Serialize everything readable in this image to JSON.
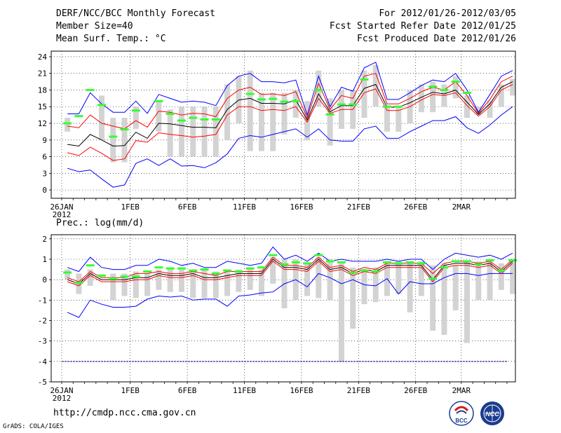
{
  "header": {
    "title": "DERF/NCC/BCC Monthly Forecast",
    "member_size": "Member Size=40",
    "variable1": "Mean Surf. Temp.: °C",
    "period": "For 2012/01/26-2012/03/05",
    "start_ref": "Fcst Started Refer Date 2012/01/25",
    "produced": "Fcst Produced Date 2012/01/26"
  },
  "footer": {
    "url": "http://cmdp.ncc.cma.gov.cn",
    "credit": "GrADS: COLA/IGES",
    "logo_left": "BCC",
    "logo_right": "NCC"
  },
  "colors": {
    "max": "#0000ff",
    "min": "#0000ff",
    "spread": "#ff0000",
    "mean": "#000000",
    "obs": "#33ff33",
    "box": "#d3d3d3",
    "threshold": "#00008b"
  },
  "chart_data": [
    {
      "type": "line",
      "title": "Mean Surf. Temp.: °C",
      "x_tick_labels": [
        "26JAN\n2012",
        "1FEB",
        "6FEB",
        "11FEB",
        "16FEB",
        "21FEB",
        "26FEB",
        "2MAR"
      ],
      "x_tick_days": [
        0,
        6,
        11,
        16,
        21,
        26,
        31,
        35
      ],
      "ylim": [
        -1.5,
        25
      ],
      "yticks": [
        0,
        3,
        6,
        9,
        12,
        15,
        18,
        21,
        24
      ],
      "n_days": 39,
      "series": [
        {
          "name": "max",
          "values": [
            13.7,
            13.7,
            17.5,
            15.5,
            14.0,
            14.0,
            16.0,
            13.8,
            17.2,
            16.5,
            15.8,
            16.0,
            15.8,
            15.2,
            18.8,
            20.5,
            21.0,
            19.5,
            19.5,
            19.3,
            19.8,
            13.5,
            20.5,
            15.0,
            18.5,
            17.8,
            22.0,
            23.0,
            16.3,
            16.3,
            17.5,
            18.8,
            19.8,
            19.5,
            21.0,
            18.0,
            14.0,
            17.2,
            20.5,
            21.5
          ]
        },
        {
          "name": "upper",
          "values": [
            11.5,
            11.2,
            13.5,
            12.0,
            11.5,
            11.0,
            12.5,
            11.3,
            14.2,
            14.0,
            13.5,
            13.8,
            13.7,
            13.2,
            16.5,
            18.0,
            18.5,
            17.2,
            17.3,
            17.0,
            17.7,
            13.0,
            19.2,
            14.5,
            17.0,
            16.5,
            20.5,
            21.0,
            15.5,
            15.5,
            16.5,
            17.7,
            18.5,
            18.0,
            19.5,
            17.0,
            13.8,
            16.3,
            19.5,
            20.5
          ]
        },
        {
          "name": "mean",
          "values": [
            8.2,
            7.9,
            10.0,
            9.0,
            7.9,
            8.0,
            10.4,
            9.3,
            12.0,
            11.9,
            11.6,
            11.3,
            11.3,
            11.2,
            14.5,
            16.2,
            16.5,
            15.6,
            15.6,
            15.5,
            16.2,
            12.6,
            17.3,
            14.1,
            15.2,
            15.2,
            18.3,
            19.0,
            14.9,
            14.9,
            15.7,
            16.7,
            17.6,
            17.3,
            18.0,
            15.8,
            13.6,
            15.5,
            18.5,
            19.5
          ]
        },
        {
          "name": "lower",
          "values": [
            6.7,
            6.2,
            7.7,
            6.6,
            5.3,
            5.6,
            8.9,
            8.6,
            10.3,
            10.0,
            9.8,
            9.5,
            9.7,
            10.0,
            13.5,
            15.0,
            15.0,
            14.3,
            14.5,
            14.3,
            15.0,
            12.2,
            16.5,
            13.8,
            14.5,
            14.5,
            17.5,
            18.2,
            14.3,
            14.3,
            15.0,
            16.2,
            17.2,
            17.0,
            17.5,
            15.2,
            13.3,
            15.0,
            18.0,
            19.0
          ]
        },
        {
          "name": "min",
          "values": [
            3.9,
            3.3,
            3.6,
            2.0,
            0.5,
            0.9,
            4.8,
            5.6,
            4.4,
            5.6,
            4.3,
            4.4,
            4.0,
            4.9,
            6.5,
            9.3,
            9.8,
            9.5,
            10.0,
            10.5,
            11.0,
            9.5,
            11.0,
            9.0,
            8.8,
            8.8,
            11.0,
            11.5,
            9.3,
            9.3,
            10.5,
            11.5,
            12.5,
            12.5,
            13.2,
            11.2,
            10.2,
            11.7,
            13.5,
            15.0
          ]
        },
        {
          "name": "obs_range_low",
          "values": [
            10.5,
            null,
            null,
            9.0,
            5.0,
            5.0,
            11.0,
            null,
            10.5,
            6.0,
            6.0,
            6.0,
            6.0,
            6.0,
            9.0,
            12.0,
            7.0,
            7.0,
            7.0,
            10.0,
            13.0,
            9.0,
            15.0,
            8.0,
            11.0,
            11.0,
            13.0,
            15.0,
            10.5,
            10.5,
            12.0,
            14.0,
            14.0,
            15.0,
            16.5,
            13.0,
            13.5,
            13.0,
            15.0,
            17.0
          ]
        },
        {
          "name": "obs_range_high",
          "values": [
            13.0,
            null,
            null,
            17.0,
            13.0,
            13.0,
            15.0,
            null,
            16.0,
            14.5,
            15.0,
            15.0,
            15.0,
            15.0,
            19.0,
            20.5,
            21.5,
            17.5,
            17.5,
            17.5,
            18.0,
            16.0,
            21.5,
            16.5,
            18.0,
            18.0,
            21.5,
            22.5,
            15.0,
            15.0,
            18.0,
            19.0,
            19.5,
            19.0,
            20.5,
            17.0,
            15.0,
            16.0,
            19.0,
            20.0
          ]
        },
        {
          "name": "obs",
          "values": [
            12.0,
            13.3,
            18.0,
            15.3,
            9.6,
            10.9,
            14.3,
            null,
            16.0,
            13.7,
            12.5,
            13.0,
            12.7,
            12.7,
            null,
            null,
            17.3,
            16.3,
            16.4,
            15.9,
            16.0,
            null,
            18.0,
            13.6,
            15.4,
            15.4,
            19.9,
            null,
            15.0,
            15.0,
            null,
            null,
            18.6,
            18.0,
            19.5,
            17.5,
            null,
            null,
            null,
            null
          ]
        }
      ]
    },
    {
      "type": "line",
      "title": "Prec.: log(mm/d)",
      "x_tick_labels": [
        "26JAN\n2012",
        "1FEB",
        "6FEB",
        "11FEB",
        "16FEB",
        "21FEB",
        "26FEB",
        "2MAR"
      ],
      "x_tick_days": [
        0,
        6,
        11,
        16,
        21,
        26,
        31,
        35
      ],
      "ylim": [
        -5,
        2.2
      ],
      "yticks": [
        -5,
        -4,
        -3,
        -2,
        -1,
        0,
        1,
        2
      ],
      "n_days": 39,
      "threshold": -4,
      "series": [
        {
          "name": "max",
          "values": [
            0.6,
            0.4,
            1.1,
            0.6,
            0.5,
            0.5,
            0.7,
            0.7,
            1.0,
            0.9,
            0.7,
            0.8,
            0.6,
            0.6,
            0.9,
            0.8,
            0.7,
            0.8,
            1.6,
            1.0,
            1.2,
            0.9,
            1.3,
            0.9,
            1.0,
            0.9,
            0.9,
            0.9,
            1.0,
            0.9,
            1.0,
            1.0,
            0.5,
            1.0,
            1.3,
            1.2,
            1.1,
            1.2,
            1.0,
            1.3
          ]
        },
        {
          "name": "upper",
          "values": [
            0.1,
            -0.1,
            0.4,
            0.1,
            0.1,
            0.1,
            0.3,
            0.3,
            0.4,
            0.3,
            0.3,
            0.4,
            0.3,
            0.2,
            0.4,
            0.4,
            0.4,
            0.4,
            1.1,
            0.7,
            0.7,
            0.6,
            1.1,
            0.6,
            0.7,
            0.4,
            0.6,
            0.5,
            0.8,
            0.8,
            0.8,
            0.8,
            0.3,
            0.8,
            0.9,
            0.9,
            0.8,
            0.9,
            0.5,
            1.0
          ]
        },
        {
          "name": "mean",
          "values": [
            0.0,
            -0.2,
            0.3,
            0.0,
            0.0,
            0.0,
            0.1,
            0.1,
            0.3,
            0.2,
            0.2,
            0.3,
            0.1,
            0.1,
            0.2,
            0.3,
            0.3,
            0.3,
            1.0,
            0.6,
            0.6,
            0.5,
            1.0,
            0.5,
            0.6,
            0.3,
            0.5,
            0.4,
            0.7,
            0.7,
            0.7,
            0.7,
            0.0,
            0.7,
            0.8,
            0.8,
            0.7,
            0.8,
            0.4,
            0.9
          ]
        },
        {
          "name": "lower",
          "values": [
            -0.1,
            -0.3,
            0.2,
            -0.1,
            -0.1,
            -0.1,
            0.0,
            0.0,
            0.2,
            0.1,
            0.1,
            0.2,
            0.0,
            0.0,
            0.1,
            0.2,
            0.2,
            0.2,
            0.9,
            0.5,
            0.5,
            0.4,
            0.9,
            0.4,
            0.5,
            0.2,
            0.4,
            0.3,
            0.6,
            0.6,
            0.6,
            0.6,
            -0.1,
            0.6,
            0.7,
            0.7,
            0.6,
            0.7,
            0.3,
            0.8
          ]
        },
        {
          "name": "min",
          "values": [
            -1.6,
            -1.85,
            -1.0,
            -1.2,
            -1.35,
            -1.35,
            -1.3,
            -0.95,
            -0.8,
            -0.85,
            -0.8,
            -1.0,
            -0.95,
            -0.95,
            -1.3,
            -0.8,
            -0.75,
            -0.65,
            -0.6,
            -0.2,
            0.0,
            -0.35,
            0.3,
            0.1,
            -0.2,
            0.0,
            -0.25,
            -0.3,
            0.05,
            -0.7,
            -0.1,
            -0.2,
            -0.2,
            0.1,
            0.3,
            0.3,
            0.2,
            0.3,
            0.3,
            0.3
          ]
        },
        {
          "name": "obs_range_low",
          "values": [
            0.0,
            -0.7,
            -0.3,
            null,
            -1.0,
            -0.8,
            -0.9,
            -0.8,
            -0.5,
            -0.6,
            -0.6,
            -0.9,
            -0.9,
            -0.9,
            -0.8,
            -0.6,
            -0.5,
            -0.8,
            -0.2,
            -1.4,
            -1.0,
            -0.8,
            -0.9,
            -1.0,
            -4.0,
            -2.4,
            -1.2,
            -1.1,
            -0.8,
            -0.7,
            -1.6,
            -0.8,
            -2.5,
            -2.7,
            -1.5,
            -3.1,
            -1.0,
            -1.0,
            -0.5,
            -0.7
          ]
        },
        {
          "name": "obs_range_high",
          "values": [
            0.5,
            0.3,
            0.5,
            null,
            0.3,
            0.3,
            0.4,
            0.3,
            0.5,
            0.6,
            0.5,
            0.5,
            0.5,
            0.4,
            0.5,
            0.5,
            0.5,
            0.5,
            1.1,
            1.0,
            1.0,
            0.8,
            1.1,
            1.0,
            0.9,
            0.6,
            0.5,
            0.6,
            0.9,
            0.9,
            0.9,
            0.9,
            0.7,
            0.8,
            0.7,
            0.9,
            0.9,
            0.9,
            0.8,
            1.0
          ]
        },
        {
          "name": "obs",
          "values": [
            0.35,
            -0.15,
            0.7,
            0.2,
            0.05,
            0.15,
            0.15,
            0.4,
            0.6,
            0.55,
            0.55,
            0.45,
            0.5,
            0.3,
            0.45,
            0.4,
            0.55,
            0.6,
            1.2,
            0.75,
            0.85,
            0.8,
            1.2,
            0.9,
            0.85,
            0.35,
            0.45,
            0.4,
            0.85,
            0.8,
            0.85,
            0.8,
            0.05,
            0.6,
            0.9,
            0.9,
            0.75,
            0.95,
            0.45,
            0.95
          ]
        }
      ]
    }
  ],
  "panel2_label": "Prec.: log(mm/d)"
}
